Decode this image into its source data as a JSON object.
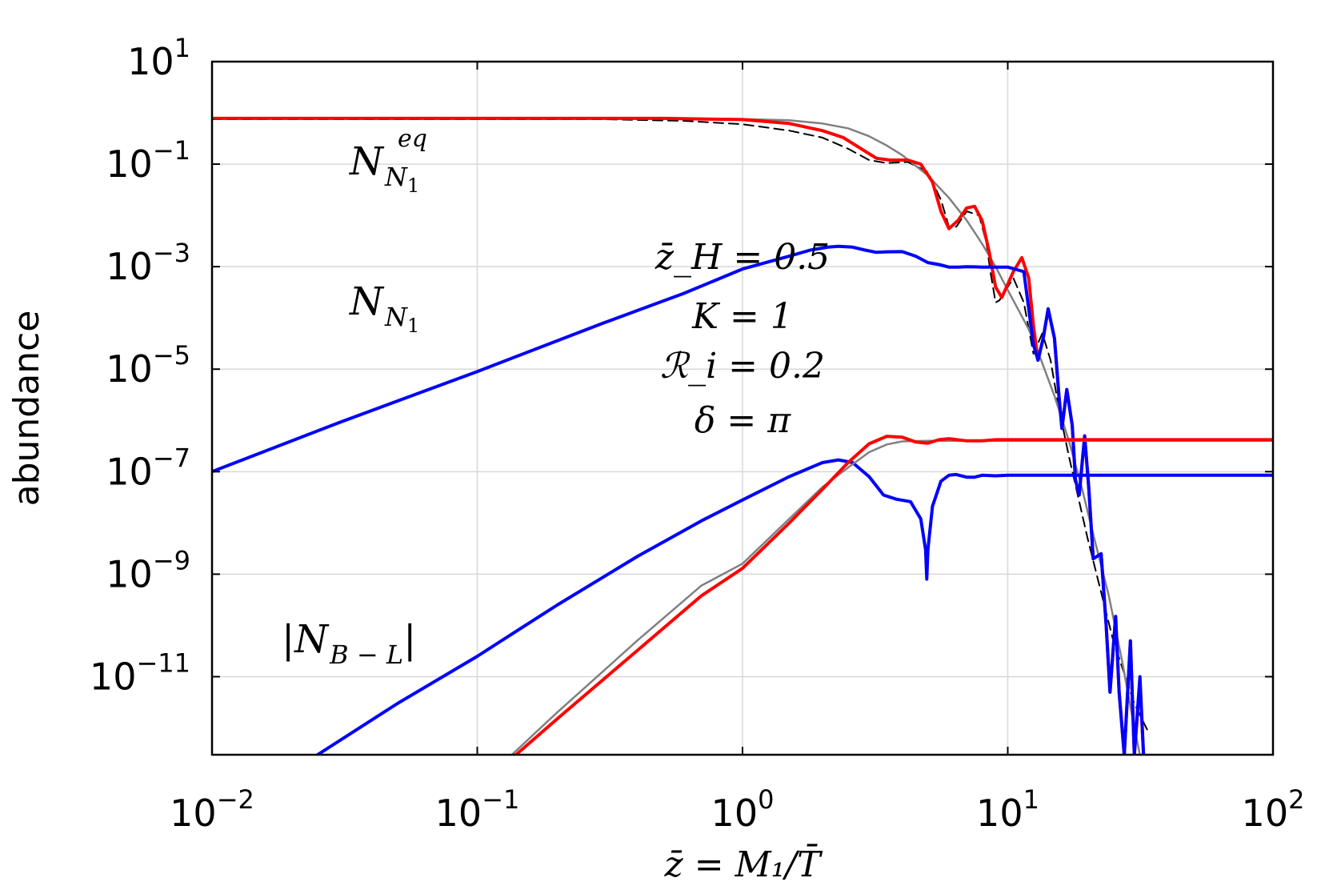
{
  "chart_data": {
    "type": "line",
    "xscale": "log",
    "yscale": "log",
    "xlim": [
      0.01,
      100
    ],
    "ylim": [
      3e-13,
      10
    ],
    "grid": true,
    "xlabel": "z̄ = M₁/T̄",
    "ylabel": "abundance",
    "x_ticks": [
      {
        "value": 0.01,
        "base": "10",
        "exp": "−2"
      },
      {
        "value": 0.1,
        "base": "10",
        "exp": "−1"
      },
      {
        "value": 1,
        "base": "10",
        "exp": "0"
      },
      {
        "value": 10,
        "base": "10",
        "exp": "1"
      },
      {
        "value": 100,
        "base": "10",
        "exp": "2"
      }
    ],
    "y_ticks": [
      {
        "value": 10,
        "base": "10",
        "exp": "1"
      },
      {
        "value": 0.1,
        "base": "10",
        "exp": "−1"
      },
      {
        "value": 0.001,
        "base": "10",
        "exp": "−3"
      },
      {
        "value": 1e-05,
        "base": "10",
        "exp": "−5"
      },
      {
        "value": 1e-07,
        "base": "10",
        "exp": "−7"
      },
      {
        "value": 1e-09,
        "base": "10",
        "exp": "−9"
      },
      {
        "value": 1e-11,
        "base": "10",
        "exp": "−11"
      }
    ],
    "annotations": {
      "neq": {
        "main": "N",
        "sub": "N",
        "subsub": "1",
        "sup": "eq"
      },
      "nn1": {
        "main": "N",
        "sub": "N",
        "subsub": "1"
      },
      "nbl": {
        "text": "|N",
        "sub": "B − L",
        "close": "|"
      },
      "params": [
        "z̄_H = 0.5",
        "K = 1",
        "ℛ_i = 0.2",
        "δ = π"
      ]
    },
    "series": [
      {
        "color": "#000000",
        "style": "dashed",
        "width": 2,
        "points": [
          [
            0.01,
            0.75
          ],
          [
            0.3,
            0.75
          ],
          [
            0.6,
            0.7
          ],
          [
            1.0,
            0.6
          ],
          [
            1.5,
            0.45
          ],
          [
            2.0,
            0.33
          ],
          [
            2.5,
            0.2
          ],
          [
            3.0,
            0.12
          ],
          [
            3.5,
            0.105
          ],
          [
            4.2,
            0.11
          ],
          [
            5.0,
            0.07
          ],
          [
            5.6,
            0.02
          ],
          [
            6.0,
            0.006
          ],
          [
            6.4,
            0.006
          ],
          [
            7.0,
            0.012
          ],
          [
            7.8,
            0.01
          ],
          [
            8.3,
            0.003
          ],
          [
            8.6,
            0.0008
          ],
          [
            9.0,
            0.0002
          ],
          [
            9.3,
            0.00022
          ],
          [
            10.5,
            0.0006
          ],
          [
            11.5,
            0.0002
          ],
          [
            12.5,
            2e-05
          ],
          [
            13.5,
            5e-05
          ],
          [
            14.5,
            1.5e-05
          ],
          [
            15.5,
            2e-06
          ],
          [
            17,
            2e-07
          ],
          [
            20,
            5e-09
          ],
          [
            25,
            5e-11
          ],
          [
            30,
            3e-12
          ],
          [
            34,
            8e-13
          ]
        ]
      },
      {
        "color": "#808080",
        "style": "solid",
        "width": 2.5,
        "points": [
          [
            0.01,
            0.78
          ],
          [
            0.5,
            0.78
          ],
          [
            1.0,
            0.76
          ],
          [
            1.5,
            0.72
          ],
          [
            2.0,
            0.62
          ],
          [
            2.5,
            0.5
          ],
          [
            3.0,
            0.35
          ],
          [
            3.5,
            0.23
          ],
          [
            4.0,
            0.15
          ],
          [
            5.0,
            0.06
          ],
          [
            6.0,
            0.022
          ],
          [
            7.0,
            0.008
          ],
          [
            8.0,
            0.0028
          ],
          [
            9.0,
            0.001
          ],
          [
            10.0,
            0.00035
          ],
          [
            11.0,
            0.00014
          ],
          [
            12.0,
            6e-05
          ],
          [
            13.0,
            2.2e-05
          ],
          [
            15.0,
            3e-06
          ],
          [
            17.0,
            4e-07
          ],
          [
            19.0,
            5e-08
          ],
          [
            21.0,
            6e-09
          ],
          [
            24.0,
            4e-10
          ],
          [
            27.0,
            2e-11
          ],
          [
            30.0,
            1e-12
          ],
          [
            31.5,
            3e-13
          ]
        ]
      },
      {
        "color": "#ff0000",
        "style": "solid",
        "width": 4,
        "points": [
          [
            0.01,
            0.78
          ],
          [
            0.5,
            0.78
          ],
          [
            1.0,
            0.74
          ],
          [
            1.5,
            0.62
          ],
          [
            2.0,
            0.45
          ],
          [
            2.4,
            0.33
          ],
          [
            2.8,
            0.2
          ],
          [
            3.2,
            0.13
          ],
          [
            3.6,
            0.12
          ],
          [
            4.2,
            0.12
          ],
          [
            4.7,
            0.1
          ],
          [
            5.2,
            0.045
          ],
          [
            5.6,
            0.012
          ],
          [
            6.0,
            0.0055
          ],
          [
            6.5,
            0.008
          ],
          [
            7.0,
            0.014
          ],
          [
            7.5,
            0.015
          ],
          [
            8.0,
            0.008
          ],
          [
            8.5,
            0.002
          ],
          [
            9.0,
            0.0004
          ],
          [
            9.5,
            0.00025
          ],
          [
            10.5,
            0.0008
          ],
          [
            11.3,
            0.0015
          ],
          [
            12.0,
            0.0006
          ],
          [
            12.5,
            7e-05
          ],
          [
            13.0,
            1.5e-05
          ],
          [
            13.6,
            4e-05
          ],
          [
            14.2,
            0.00015
          ],
          [
            15.0,
            4e-05
          ],
          [
            15.6,
            3e-06
          ],
          [
            16.0,
            7e-07
          ],
          [
            16.7,
            4e-06
          ],
          [
            17.5,
            8e-07
          ],
          [
            18.0,
            7e-08
          ],
          [
            18.6,
            3.5e-08
          ],
          [
            19.5,
            5e-07
          ],
          [
            20.2,
            5e-08
          ],
          [
            21.0,
            2e-09
          ],
          [
            22.5,
            2.5e-09
          ],
          [
            23.5,
            1e-10
          ],
          [
            24.3,
            5e-12
          ],
          [
            25.5,
            1.5e-10
          ],
          [
            26.3,
            5e-12
          ],
          [
            27.5,
            3e-13
          ],
          [
            29,
            5e-11
          ],
          [
            30.0,
            3e-13
          ],
          [
            31.5,
            8e-12
          ],
          [
            32.5,
            3e-13
          ]
        ]
      },
      {
        "color": "#0000ff",
        "style": "solid",
        "width": 4,
        "points": [
          [
            0.01,
            1e-07
          ],
          [
            0.03,
            9e-07
          ],
          [
            0.1,
            9e-06
          ],
          [
            0.3,
            8e-05
          ],
          [
            0.6,
            0.0003
          ],
          [
            1.0,
            0.0009
          ],
          [
            1.5,
            0.0016
          ],
          [
            1.8,
            0.0021
          ],
          [
            2.1,
            0.0024
          ],
          [
            2.3,
            0.0025
          ],
          [
            2.6,
            0.0024
          ],
          [
            2.9,
            0.0021
          ],
          [
            3.2,
            0.0019
          ],
          [
            3.5,
            0.00195
          ],
          [
            4.0,
            0.00196
          ],
          [
            4.5,
            0.0016
          ],
          [
            5.0,
            0.0012
          ],
          [
            5.5,
            0.0011
          ],
          [
            6.0,
            0.00098
          ],
          [
            6.5,
            0.00098
          ],
          [
            7.0,
            0.001
          ],
          [
            7.5,
            0.00099
          ],
          [
            8.0,
            0.00098
          ],
          [
            9.0,
            0.00098
          ],
          [
            10.0,
            0.00098
          ],
          [
            11.5,
            0.0008
          ],
          [
            12.5,
            3e-05
          ],
          [
            13.0,
            1.5e-05
          ],
          [
            13.6,
            4e-05
          ],
          [
            14.2,
            0.00015
          ],
          [
            15.0,
            4e-05
          ],
          [
            15.6,
            3e-06
          ],
          [
            16.0,
            7e-07
          ],
          [
            16.7,
            4e-06
          ],
          [
            17.5,
            8e-07
          ],
          [
            18.0,
            7e-08
          ],
          [
            18.6,
            3.5e-08
          ],
          [
            19.5,
            5e-07
          ],
          [
            20.2,
            5e-08
          ],
          [
            21.0,
            2e-09
          ],
          [
            22.5,
            2.5e-09
          ],
          [
            23.5,
            1e-10
          ],
          [
            24.3,
            5e-12
          ],
          [
            25.5,
            1.5e-10
          ],
          [
            26.3,
            5e-12
          ],
          [
            27.5,
            3e-13
          ],
          [
            29,
            5e-11
          ],
          [
            30.0,
            3e-13
          ],
          [
            31.5,
            1e-11
          ],
          [
            32.5,
            3e-13
          ]
        ]
      },
      {
        "color": "#0000ff",
        "style": "solid",
        "width": 4,
        "points": [
          [
            0.025,
            3e-13
          ],
          [
            0.05,
            3e-12
          ],
          [
            0.1,
            2.5e-11
          ],
          [
            0.2,
            2.5e-10
          ],
          [
            0.4,
            2.2e-09
          ],
          [
            0.7,
            1.1e-08
          ],
          [
            1.0,
            2.8e-08
          ],
          [
            1.5,
            8e-08
          ],
          [
            2.0,
            1.5e-07
          ],
          [
            2.3,
            1.7e-07
          ],
          [
            2.6,
            1.5e-07
          ],
          [
            3.0,
            8e-08
          ],
          [
            3.4,
            3.5e-08
          ],
          [
            3.8,
            2.9e-08
          ],
          [
            4.3,
            2.6e-08
          ],
          [
            4.7,
            1.2e-08
          ],
          [
            4.9,
            3e-09
          ],
          [
            4.95,
            8e-10
          ],
          [
            5.0,
            3e-09
          ],
          [
            5.2,
            2.1e-08
          ],
          [
            5.6,
            6.5e-08
          ],
          [
            6.0,
            8.5e-08
          ],
          [
            6.4,
            8.8e-08
          ],
          [
            7.0,
            7.8e-08
          ],
          [
            7.5,
            7.8e-08
          ],
          [
            8.0,
            8.5e-08
          ],
          [
            9.0,
            8.3e-08
          ],
          [
            10,
            8.5e-08
          ],
          [
            100,
            8.5e-08
          ]
        ]
      },
      {
        "color": "#808080",
        "style": "solid",
        "width": 2.5,
        "points": [
          [
            0.135,
            3e-13
          ],
          [
            0.2,
            2e-12
          ],
          [
            0.4,
            5e-11
          ],
          [
            0.7,
            6e-10
          ],
          [
            1.0,
            1.6e-09
          ],
          [
            1.5,
            1.2e-08
          ],
          [
            2.0,
            5e-08
          ],
          [
            2.5,
            1.2e-07
          ],
          [
            3.0,
            2.4e-07
          ],
          [
            3.5,
            3.4e-07
          ],
          [
            4.0,
            3.9e-07
          ],
          [
            5.0,
            4e-07
          ],
          [
            10,
            4e-07
          ],
          [
            100,
            4e-07
          ]
        ]
      },
      {
        "color": "#ff0000",
        "style": "solid",
        "width": 4,
        "points": [
          [
            0.14,
            3e-13
          ],
          [
            0.2,
            1.5e-12
          ],
          [
            0.4,
            3.2e-11
          ],
          [
            0.7,
            3.8e-10
          ],
          [
            1.0,
            1.3e-09
          ],
          [
            1.5,
            1e-08
          ],
          [
            2.0,
            4.5e-08
          ],
          [
            2.5,
            1.5e-07
          ],
          [
            3.0,
            3.5e-07
          ],
          [
            3.5,
            4.9e-07
          ],
          [
            4.0,
            4.7e-07
          ],
          [
            4.5,
            3.8e-07
          ],
          [
            5.0,
            3.6e-07
          ],
          [
            5.5,
            4.2e-07
          ],
          [
            6.0,
            4.4e-07
          ],
          [
            7.0,
            4e-07
          ],
          [
            8.0,
            4e-07
          ],
          [
            9.0,
            4.2e-07
          ],
          [
            10,
            4.2e-07
          ],
          [
            100,
            4.2e-07
          ]
        ]
      }
    ]
  }
}
